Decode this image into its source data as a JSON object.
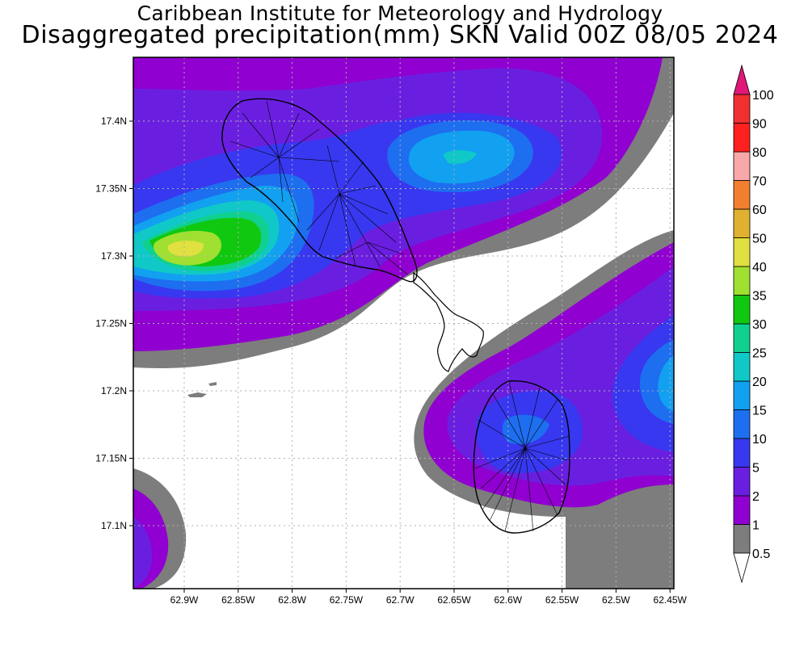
{
  "header": {
    "title_line1": "Caribbean Institute for Meteorology and Hydrology",
    "title_line2": "Disaggregated precipitation(mm) SKN Valid 00Z 08/05 2024"
  },
  "axes": {
    "x_ticks": [
      "62.9W",
      "62.85W",
      "62.8W",
      "62.75W",
      "62.7W",
      "62.65W",
      "62.6W",
      "62.55W",
      "62.5W",
      "62.45W"
    ],
    "y_ticks": [
      "17.4N",
      "17.35N",
      "17.3N",
      "17.25N",
      "17.2N",
      "17.15N",
      "17.1N"
    ]
  },
  "legend": {
    "levels": [
      "0.5",
      "1",
      "2",
      "5",
      "10",
      "15",
      "20",
      "25",
      "30",
      "35",
      "40",
      "50",
      "60",
      "70",
      "80",
      "90",
      "100"
    ],
    "colors": [
      "#7d7d7d",
      "#9000d0",
      "#6a1fe0",
      "#3838f0",
      "#1e6ef0",
      "#12a0f0",
      "#10c8c8",
      "#10d090",
      "#10c810",
      "#a0e030",
      "#e0e040",
      "#e0b030",
      "#f08030",
      "#f8a8a8",
      "#ff2020",
      "#f03030",
      "#e01878"
    ]
  },
  "chart_data": {
    "type": "heatmap",
    "title": "Caribbean Institute for Meteorology and Hydrology / Disaggregated precipitation(mm) SKN Valid 00Z 08/05 2024",
    "units": "mm",
    "xlim": [
      -62.945,
      -62.45
    ],
    "ylim": [
      17.055,
      17.445
    ],
    "colorbar_levels": [
      0.5,
      1,
      2,
      5,
      10,
      15,
      20,
      25,
      30,
      35,
      40,
      50,
      60,
      70,
      80,
      90,
      100
    ],
    "peaks": [
      {
        "lon": -62.9,
        "lat": 17.305,
        "value_range": "40-50"
      },
      {
        "lon": -62.65,
        "lat": 17.372,
        "value_range": "20-25"
      },
      {
        "lon": -62.6,
        "lat": 17.16,
        "value_range": "5-10"
      },
      {
        "lon": -62.455,
        "lat": 17.2,
        "value_range": "10-15"
      }
    ],
    "grid": true
  }
}
